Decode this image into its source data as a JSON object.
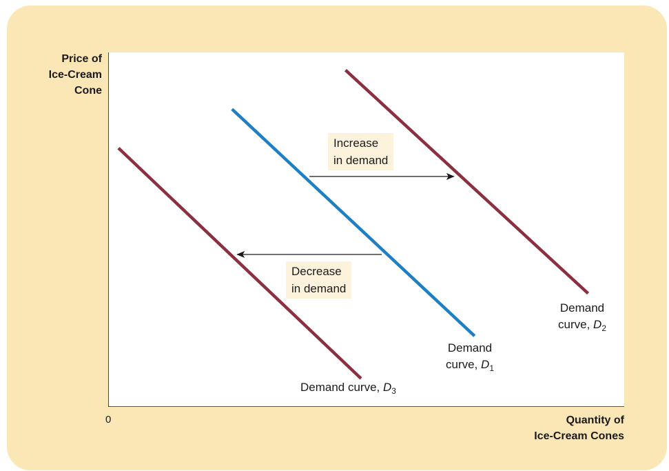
{
  "chart_data": {
    "type": "line",
    "ylabel_lines": [
      "Price of",
      "Ice-Cream",
      "Cone"
    ],
    "xlabel_lines": [
      "Quantity of",
      "Ice-Cream Cones"
    ],
    "origin_label": "0",
    "xlim": [
      0,
      10
    ],
    "ylim": [
      0,
      10
    ],
    "grid": false,
    "series": [
      {
        "id": "d1",
        "color": "#1f7fc4",
        "x": [
          2.4,
          7.1
        ],
        "y": [
          8.4,
          2.0
        ],
        "label_prefix": "Demand",
        "label_line2": "curve, ",
        "label_var": "D",
        "label_sub": "1"
      },
      {
        "id": "d2",
        "color": "#8b3040",
        "x": [
          4.6,
          9.3
        ],
        "y": [
          9.5,
          3.2
        ],
        "label_prefix": "Demand",
        "label_line2": "curve, ",
        "label_var": "D",
        "label_sub": "2"
      },
      {
        "id": "d3",
        "color": "#8b3040",
        "x": [
          0.2,
          4.9
        ],
        "y": [
          7.3,
          0.8
        ],
        "label_prefix": "Demand curve, ",
        "label_var": "D",
        "label_sub": "3"
      }
    ],
    "annotations": [
      {
        "id": "increase",
        "lines": [
          "Increase",
          "in demand"
        ],
        "arrow_from": [
          3.9,
          6.5
        ],
        "arrow_to": [
          6.7,
          6.5
        ]
      },
      {
        "id": "decrease",
        "lines": [
          "Decrease",
          "in demand"
        ],
        "arrow_from": [
          5.3,
          4.3
        ],
        "arrow_to": [
          2.5,
          4.3
        ]
      }
    ]
  },
  "style": {
    "frame_color": "#fbe6b6",
    "plot_bg": "#ffffff",
    "axis_color": "#1a1a1a",
    "label_bg": "#fdf3dc"
  }
}
